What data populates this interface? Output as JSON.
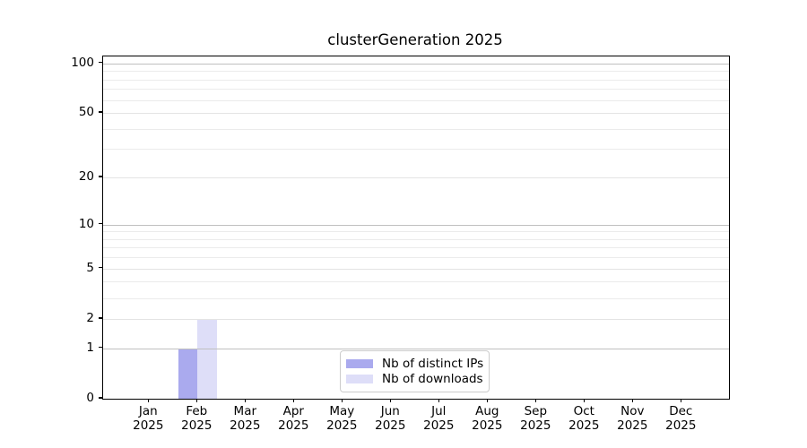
{
  "chart_data": {
    "type": "bar",
    "title": "clusterGeneration 2025",
    "categories": [
      "Jan",
      "Feb",
      "Mar",
      "Apr",
      "May",
      "Jun",
      "Jul",
      "Aug",
      "Sep",
      "Oct",
      "Nov",
      "Dec"
    ],
    "category_year": "2025",
    "series": [
      {
        "name": "Nb of distinct IPs",
        "color": "#aaaaee",
        "values": [
          0,
          1,
          0,
          0,
          0,
          0,
          0,
          0,
          0,
          0,
          0,
          0
        ]
      },
      {
        "name": "Nb of downloads",
        "color": "#dedef8",
        "values": [
          0,
          2,
          0,
          0,
          0,
          0,
          0,
          0,
          0,
          0,
          0,
          0
        ]
      }
    ],
    "y_axis": {
      "scale": "log1p",
      "tick_values": [
        0,
        1,
        2,
        5,
        10,
        20,
        50,
        100
      ],
      "major_gridline_values": [
        1,
        10,
        100
      ],
      "minor_gridline_values": [
        3,
        4,
        6,
        7,
        8,
        9,
        30,
        40,
        60,
        70,
        80,
        90
      ],
      "ymax": 110
    },
    "xlabel": "",
    "ylabel": "",
    "grid": true,
    "legend": {
      "position": "lower center"
    },
    "colors": {
      "major_grid": "#c0c0c0",
      "mid_grid": "#e4e4e4",
      "minor_grid": "#ebebeb",
      "spine": "#000000",
      "background": "#ffffff"
    }
  }
}
